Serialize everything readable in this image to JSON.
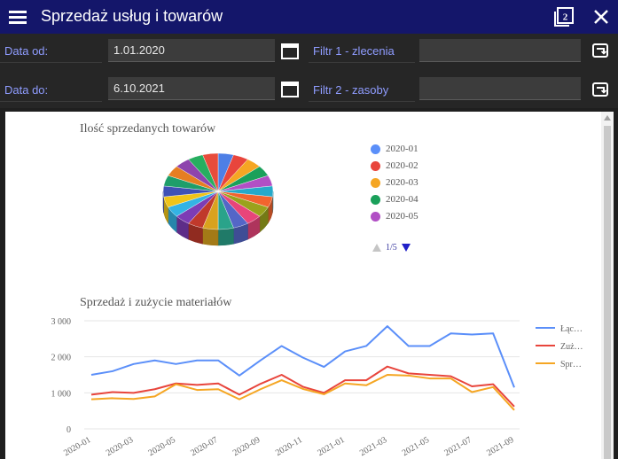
{
  "app": {
    "title": "Sprzedaż usług i towarów"
  },
  "filters": {
    "date_from_label": "Data od:",
    "date_from_value": "1.01.2020",
    "date_to_label": "Data do:",
    "date_to_value": "6.10.2021",
    "filter1_label": "Filtr 1 - zlecenia",
    "filter1_value": "",
    "filter2_label": "Filtr 2 - zasoby",
    "filter2_value": ""
  },
  "pie_legend": {
    "items": [
      {
        "label": "2020-01",
        "color": "#5b8ff9"
      },
      {
        "label": "2020-02",
        "color": "#e8453c"
      },
      {
        "label": "2020-03",
        "color": "#f5a623"
      },
      {
        "label": "2020-04",
        "color": "#1aa05a"
      },
      {
        "label": "2020-05",
        "color": "#b14fc5"
      }
    ],
    "pager": "1/5"
  },
  "chart_data": [
    {
      "type": "pie",
      "title": "Ilość sprzedanych towarów",
      "slice_colors": [
        "#4e7fe6",
        "#e8453c",
        "#f5a623",
        "#1aa05a",
        "#b14fc5",
        "#26a9c9",
        "#f2642e",
        "#9aa21c",
        "#e8457a",
        "#5466c7",
        "#2aa38a",
        "#d9a21e",
        "#c0392b",
        "#7d3cb5",
        "#34b3e4",
        "#f0c419",
        "#3f51b5",
        "#1e9e6a",
        "#e67e22",
        "#8e44ad",
        "#27ae60",
        "#e74c3c"
      ],
      "slices": [
        1,
        1,
        1,
        1,
        1,
        1,
        1,
        1,
        1,
        1,
        1,
        1,
        1,
        1,
        1,
        1,
        1,
        1,
        1,
        1,
        1,
        1
      ]
    },
    {
      "type": "line",
      "title": "Sprzedaż i zużycie materiałów",
      "x": [
        "2020-01",
        "2020-02",
        "2020-03",
        "2020-04",
        "2020-05",
        "2020-06",
        "2020-07",
        "2020-08",
        "2020-09",
        "2020-10",
        "2020-11",
        "2020-12",
        "2021-01",
        "2021-02",
        "2021-03",
        "2021-04",
        "2021-05",
        "2021-06",
        "2021-07",
        "2021-08",
        "2021-09"
      ],
      "x_tick_labels": [
        "2020-01",
        "2020-03",
        "2020-05",
        "2020-07",
        "2020-09",
        "2020-11",
        "2021-01",
        "2021-03",
        "2021-05",
        "2021-07",
        "2021-09"
      ],
      "y_tick_labels": [
        "3 000",
        "2 000",
        "1 000",
        "0"
      ],
      "ylim": [
        0,
        3000
      ],
      "series": [
        {
          "name": "Łąc…",
          "color": "#5b8ff9",
          "values": [
            1500,
            1600,
            1800,
            1900,
            1800,
            1900,
            1900,
            1480,
            1900,
            2300,
            1980,
            1720,
            2150,
            2300,
            2850,
            2300,
            2300,
            2650,
            2620,
            2650,
            1150
          ]
        },
        {
          "name": "Zuż…",
          "color": "#e8453c",
          "values": [
            950,
            1020,
            1000,
            1100,
            1260,
            1220,
            1260,
            950,
            1250,
            1500,
            1170,
            1000,
            1350,
            1350,
            1730,
            1540,
            1500,
            1460,
            1180,
            1240,
            620
          ]
        },
        {
          "name": "Spr…",
          "color": "#f5a623",
          "values": [
            820,
            850,
            830,
            900,
            1240,
            1080,
            1100,
            820,
            1100,
            1350,
            1110,
            960,
            1260,
            1210,
            1500,
            1480,
            1400,
            1400,
            1020,
            1160,
            520
          ]
        }
      ]
    }
  ]
}
